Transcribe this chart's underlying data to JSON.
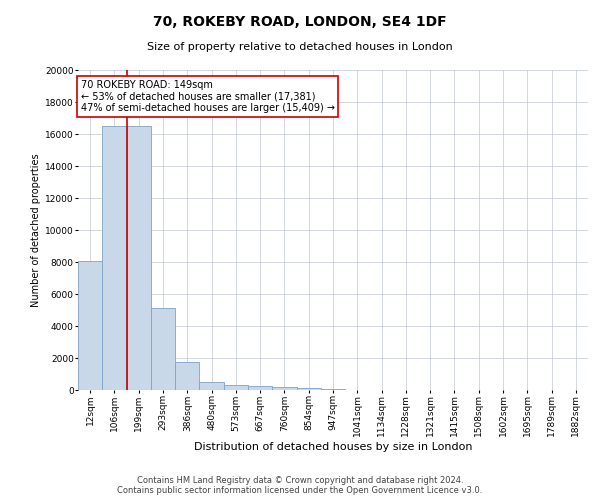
{
  "title": "70, ROKEBY ROAD, LONDON, SE4 1DF",
  "subtitle": "Size of property relative to detached houses in London",
  "xlabel": "Distribution of detached houses by size in London",
  "ylabel": "Number of detached properties",
  "categories": [
    "12sqm",
    "106sqm",
    "199sqm",
    "293sqm",
    "386sqm",
    "480sqm",
    "573sqm",
    "667sqm",
    "760sqm",
    "854sqm",
    "947sqm",
    "1041sqm",
    "1134sqm",
    "1228sqm",
    "1321sqm",
    "1415sqm",
    "1508sqm",
    "1602sqm",
    "1695sqm",
    "1789sqm",
    "1882sqm"
  ],
  "values": [
    8050,
    16500,
    16500,
    5100,
    1750,
    530,
    330,
    230,
    170,
    130,
    80,
    0,
    0,
    0,
    0,
    0,
    0,
    0,
    0,
    0,
    0
  ],
  "bar_color": "#c8d8e8",
  "bar_edge_color": "#7ba3c8",
  "vline_x_index": 1.5,
  "vline_color": "#cc0000",
  "annotation_text": "70 ROKEBY ROAD: 149sqm\n← 53% of detached houses are smaller (17,381)\n47% of semi-detached houses are larger (15,409) →",
  "annotation_box_color": "#ffffff",
  "annotation_box_edge": "#cc0000",
  "ylim": [
    0,
    20000
  ],
  "yticks": [
    0,
    2000,
    4000,
    6000,
    8000,
    10000,
    12000,
    14000,
    16000,
    18000,
    20000
  ],
  "footer_line1": "Contains HM Land Registry data © Crown copyright and database right 2024.",
  "footer_line2": "Contains public sector information licensed under the Open Government Licence v3.0.",
  "background_color": "#ffffff",
  "grid_color": "#c0c8d0",
  "title_fontsize": 10,
  "subtitle_fontsize": 8,
  "xlabel_fontsize": 8,
  "ylabel_fontsize": 7,
  "tick_fontsize": 6.5,
  "annotation_fontsize": 7,
  "footer_fontsize": 6
}
